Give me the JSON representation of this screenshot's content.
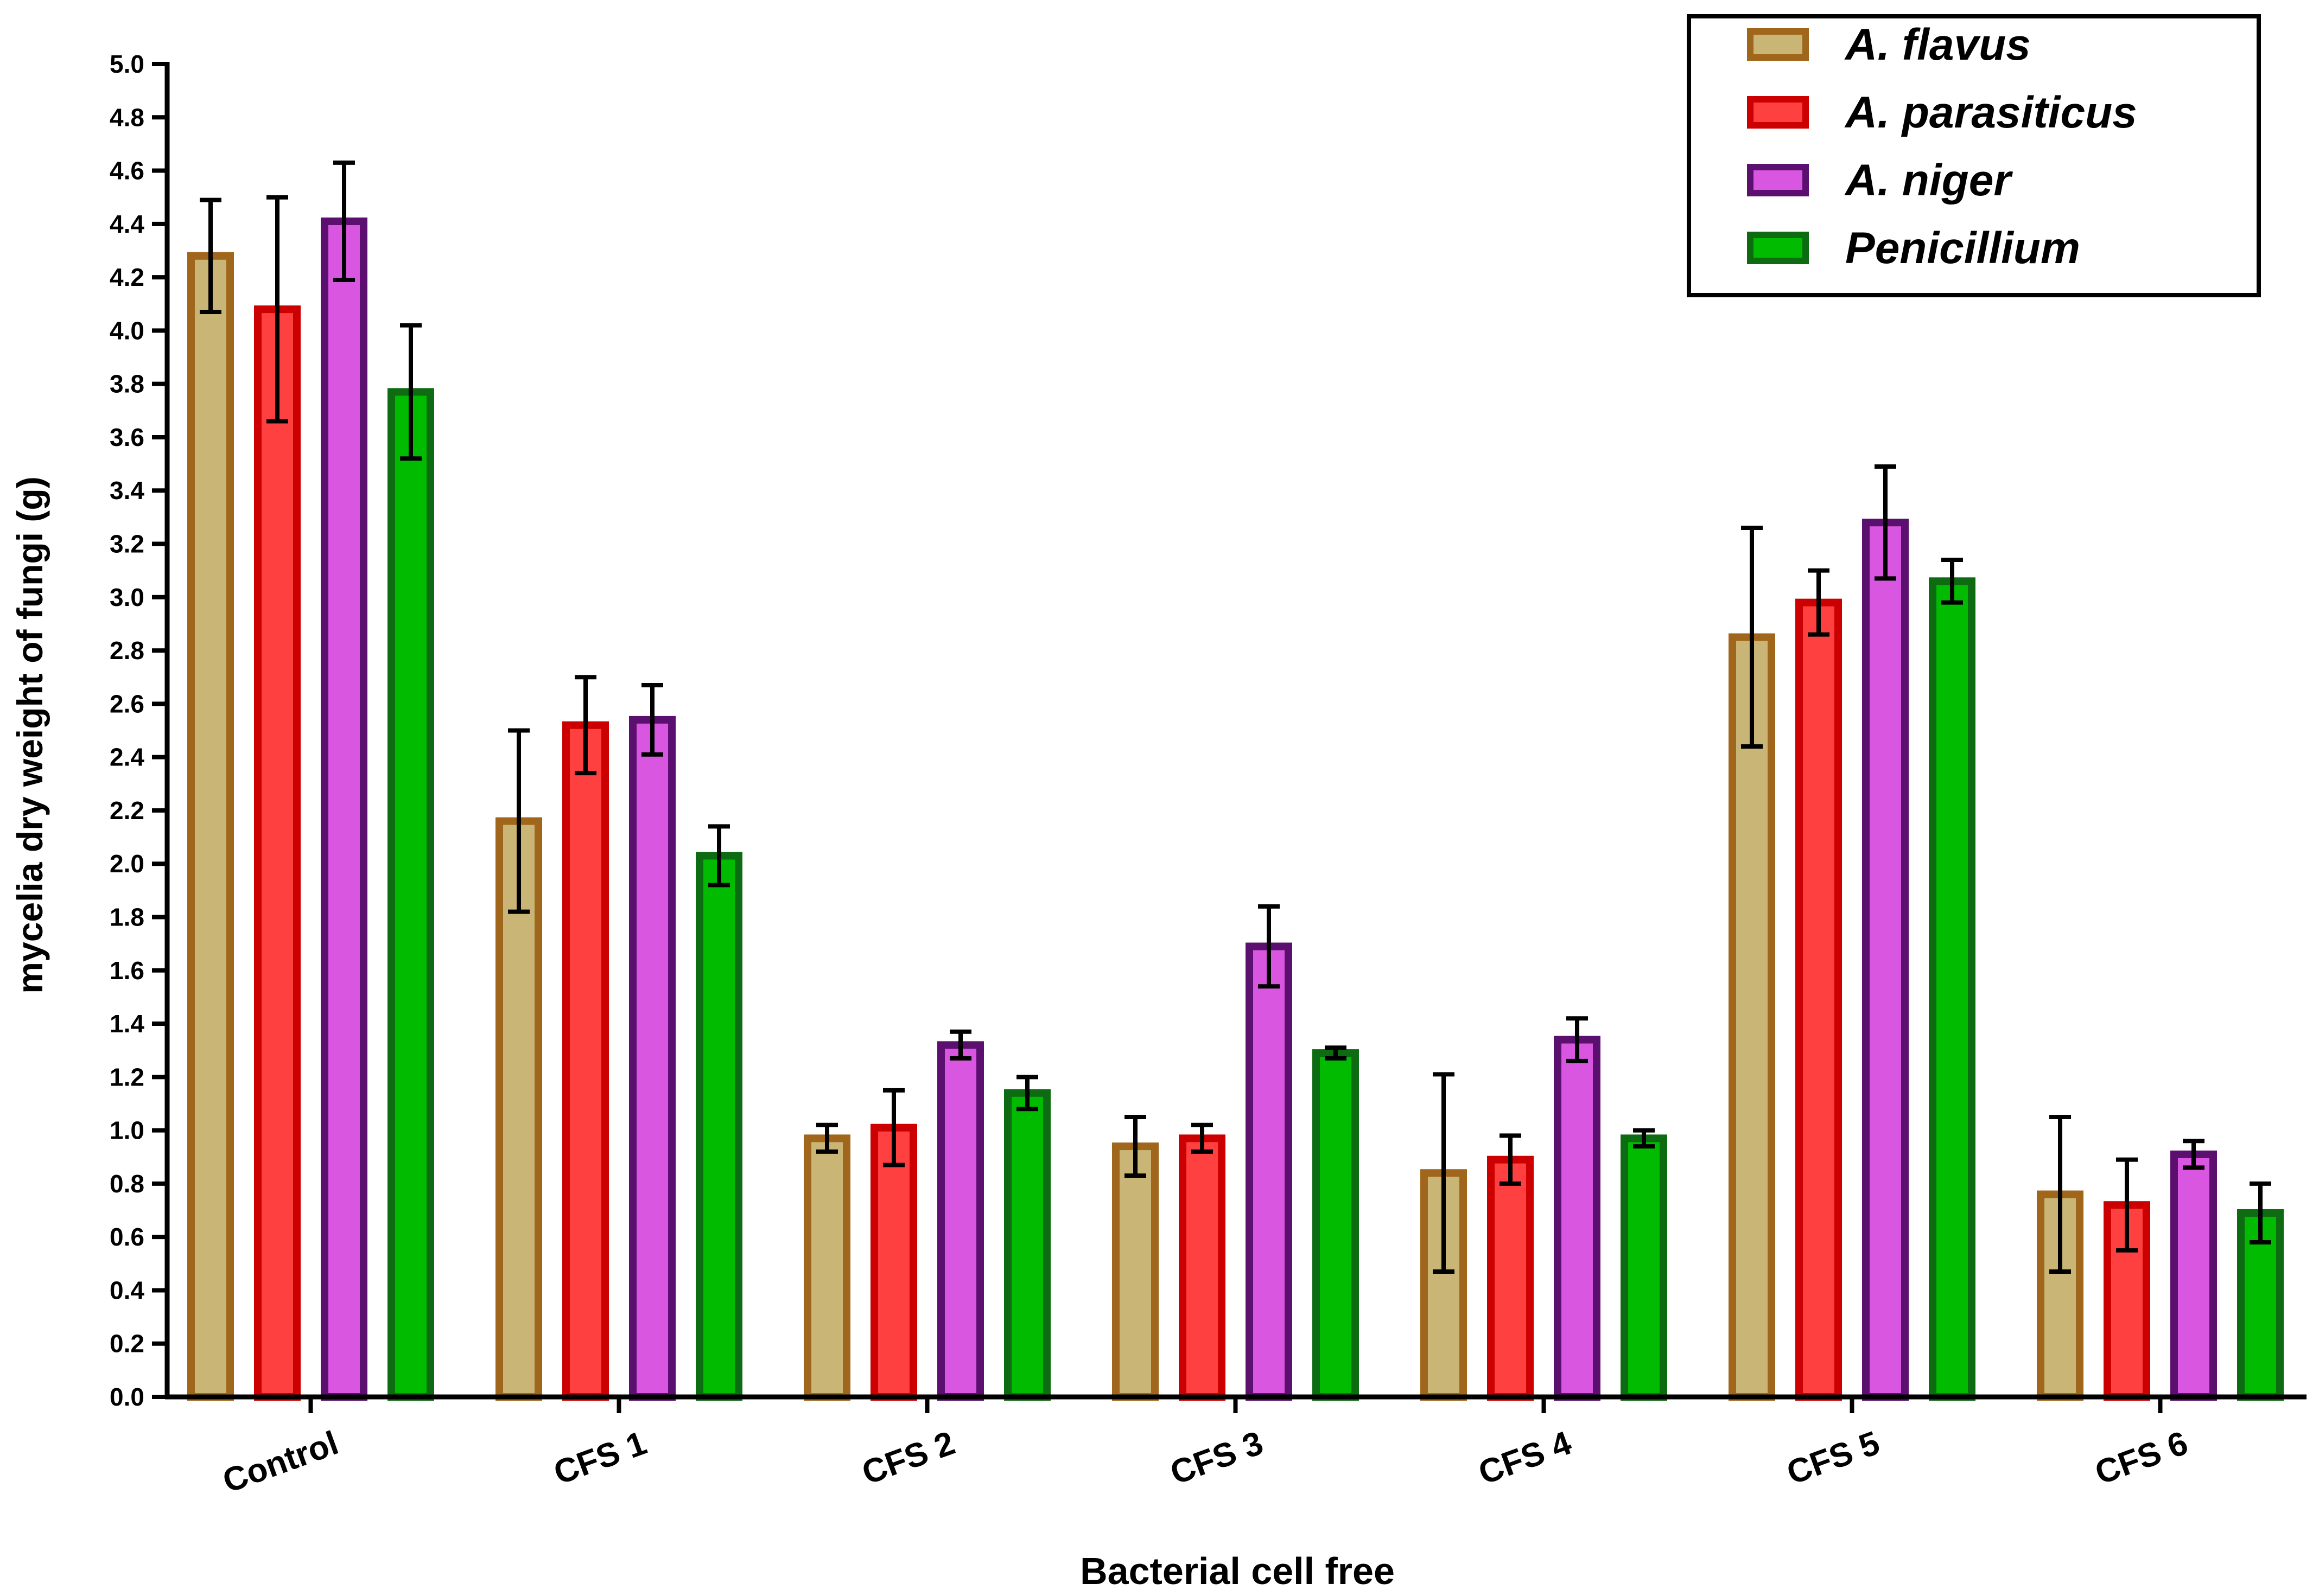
{
  "chart_data": {
    "type": "bar",
    "title": "",
    "xlabel": "Bacterial cell free",
    "ylabel": "mycelia dry weight of fungi (g)",
    "ylim": [
      0,
      5.0
    ],
    "ytick_step": 0.2,
    "yticks": [
      "0.0",
      "0.2",
      "0.4",
      "0.6",
      "0.8",
      "1.0",
      "1.2",
      "1.4",
      "1.6",
      "1.8",
      "2.0",
      "2.2",
      "2.4",
      "2.6",
      "2.8",
      "3.0",
      "3.2",
      "3.4",
      "3.6",
      "3.8",
      "4.0",
      "4.2",
      "4.4",
      "4.6",
      "4.8",
      "5.0"
    ],
    "categories": [
      "Control",
      "CFS 1",
      "CFS 2",
      "CFS 3",
      "CFS 4",
      "CFS 5",
      "CFS 6"
    ],
    "legend_position": "top-right",
    "series": [
      {
        "name": "A. flavus",
        "fill": "#c9b677",
        "stroke": "#a0661b",
        "values": [
          4.28,
          2.16,
          0.97,
          0.94,
          0.84,
          2.85,
          0.76
        ],
        "errors": [
          0.21,
          0.34,
          0.05,
          0.11,
          0.37,
          0.41,
          0.29
        ]
      },
      {
        "name": "A. parasiticus",
        "fill": "#ff4040",
        "stroke": "#cc0000",
        "values": [
          4.08,
          2.52,
          1.01,
          0.97,
          0.89,
          2.98,
          0.72
        ],
        "errors": [
          0.42,
          0.18,
          0.14,
          0.05,
          0.09,
          0.12,
          0.17
        ]
      },
      {
        "name": "A. niger",
        "fill": "#d957e0",
        "stroke": "#5b0f6e",
        "values": [
          4.41,
          2.54,
          1.32,
          1.69,
          1.34,
          3.28,
          0.91
        ],
        "errors": [
          0.22,
          0.13,
          0.05,
          0.15,
          0.08,
          0.21,
          0.05
        ]
      },
      {
        "name": "Penicillium",
        "fill": "#00bb00",
        "stroke": "#0d6b12",
        "values": [
          3.77,
          2.03,
          1.14,
          1.29,
          0.97,
          3.06,
          0.69
        ],
        "errors": [
          0.25,
          0.11,
          0.06,
          0.02,
          0.03,
          0.08,
          0.11
        ]
      }
    ]
  }
}
